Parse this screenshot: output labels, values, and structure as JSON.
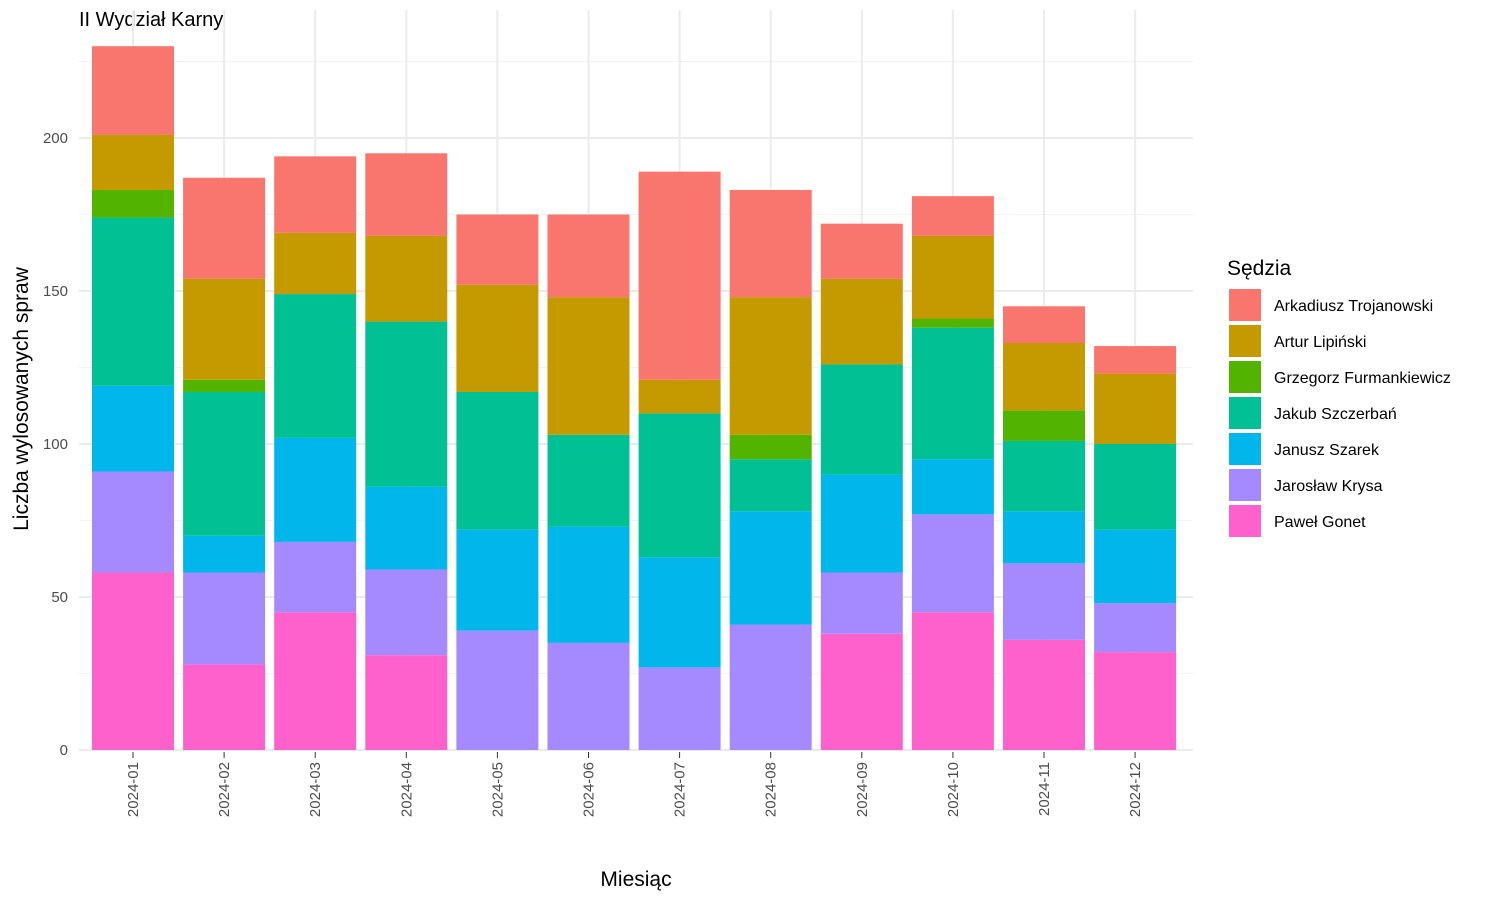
{
  "chart_data": {
    "type": "bar",
    "stacked": true,
    "title": "II Wydział Karny",
    "xlabel": "Miesiąc",
    "ylabel": "Liczba wylosowanych spraw",
    "ylim": [
      0,
      230
    ],
    "yticks": [
      0,
      50,
      100,
      150,
      200
    ],
    "grid": true,
    "legend": {
      "title": "Sędzia",
      "position": "right"
    },
    "categories": [
      "2024-01",
      "2024-02",
      "2024-03",
      "2024-04",
      "2024-05",
      "2024-06",
      "2024-07",
      "2024-08",
      "2024-09",
      "2024-10",
      "2024-11",
      "2024-12"
    ],
    "series": [
      {
        "name": "Paweł Gonet",
        "color": "#FF61CC",
        "values": [
          58,
          28,
          45,
          31,
          0,
          0,
          0,
          0,
          38,
          45,
          36,
          32
        ]
      },
      {
        "name": "Jarosław Krysa",
        "color": "#A58AFF",
        "values": [
          33,
          30,
          23,
          28,
          39,
          35,
          27,
          41,
          20,
          32,
          25,
          16
        ]
      },
      {
        "name": "Janusz Szarek",
        "color": "#00B6EB",
        "values": [
          28,
          12,
          34,
          27,
          33,
          38,
          36,
          37,
          32,
          18,
          17,
          24
        ]
      },
      {
        "name": "Jakub Szczerbań",
        "color": "#00C094",
        "values": [
          55,
          47,
          47,
          54,
          45,
          30,
          47,
          17,
          36,
          43,
          23,
          28
        ]
      },
      {
        "name": "Grzegorz Furmankiewicz",
        "color": "#53B400",
        "values": [
          9,
          4,
          0,
          0,
          0,
          0,
          0,
          8,
          0,
          3,
          10,
          0
        ]
      },
      {
        "name": "Artur Lipiński",
        "color": "#C49A00",
        "values": [
          18,
          33,
          20,
          28,
          35,
          45,
          11,
          45,
          28,
          27,
          22,
          23
        ]
      },
      {
        "name": "Arkadiusz Trojanowski",
        "color": "#F8766D",
        "values": [
          29,
          33,
          25,
          27,
          23,
          27,
          68,
          35,
          18,
          13,
          12,
          9
        ]
      }
    ],
    "legend_order": [
      "Arkadiusz Trojanowski",
      "Artur Lipiński",
      "Grzegorz Furmankiewicz",
      "Jakub Szczerbań",
      "Janusz Szarek",
      "Jarosław Krysa",
      "Paweł Gonet"
    ]
  }
}
